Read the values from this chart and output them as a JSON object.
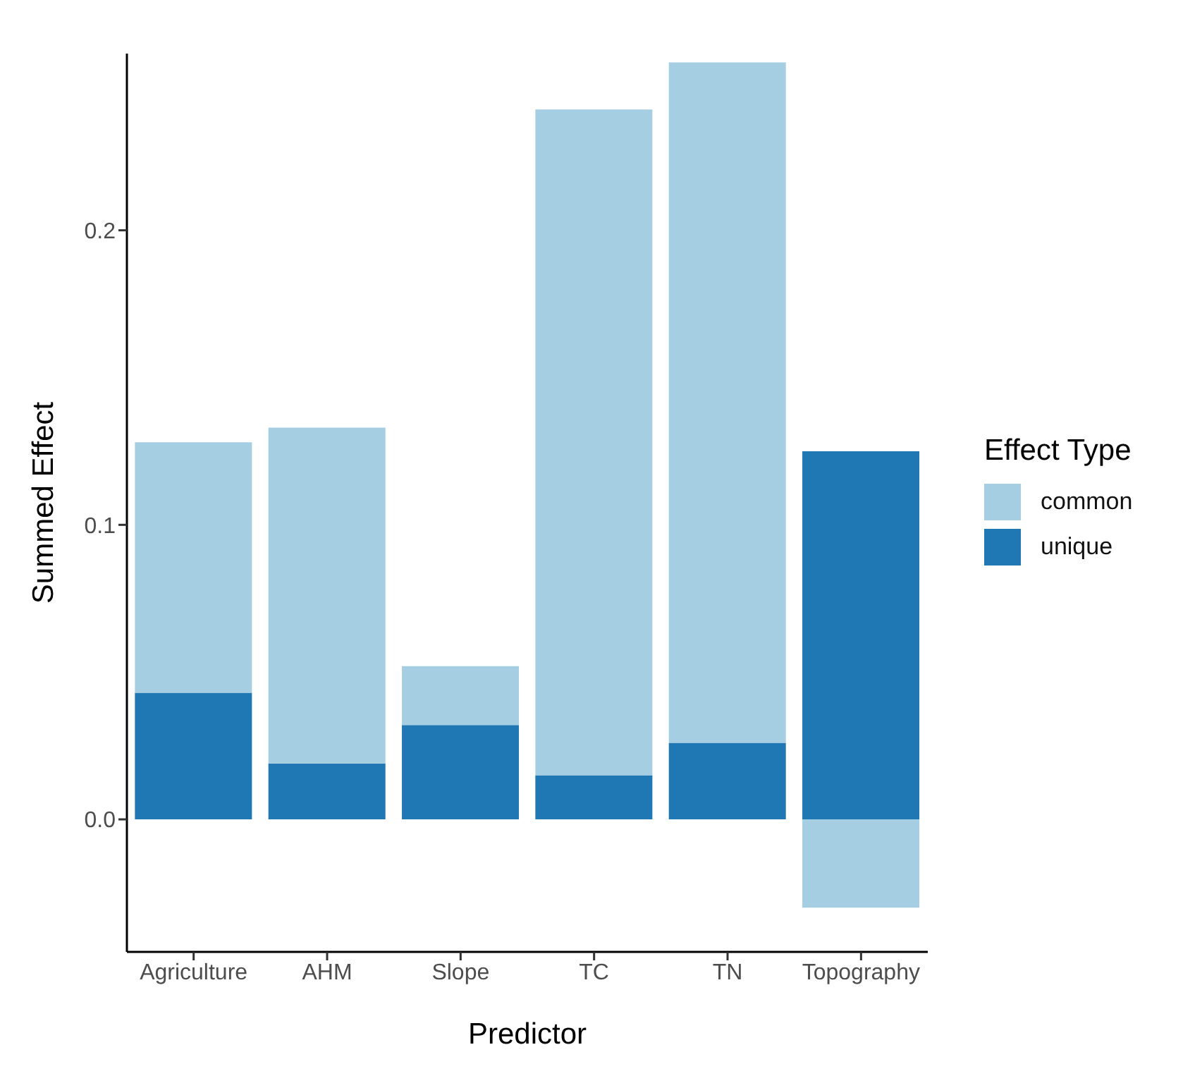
{
  "chart_data": {
    "type": "bar",
    "stacked": true,
    "xlabel": "Predictor",
    "ylabel": "Summed Effect",
    "legend_title": "Effect Type",
    "legend": "right",
    "grid": false,
    "categories": [
      "Agriculture",
      "AHM",
      "Slope",
      "TC",
      "TN",
      "Topography"
    ],
    "series": [
      {
        "name": "unique",
        "color": "#1f78b4",
        "values": [
          0.043,
          0.019,
          0.032,
          0.015,
          0.026,
          0.125
        ]
      },
      {
        "name": "common",
        "color": "#a6cee3",
        "values": [
          0.085,
          0.114,
          0.02,
          0.226,
          0.231,
          -0.03
        ]
      }
    ],
    "ylim": [
      -0.045,
      0.26
    ],
    "yticks": [
      {
        "value": 0,
        "label": "0.0"
      },
      {
        "value": 0.1,
        "label": "0.1"
      },
      {
        "value": 0.2,
        "label": "0.2"
      }
    ]
  }
}
